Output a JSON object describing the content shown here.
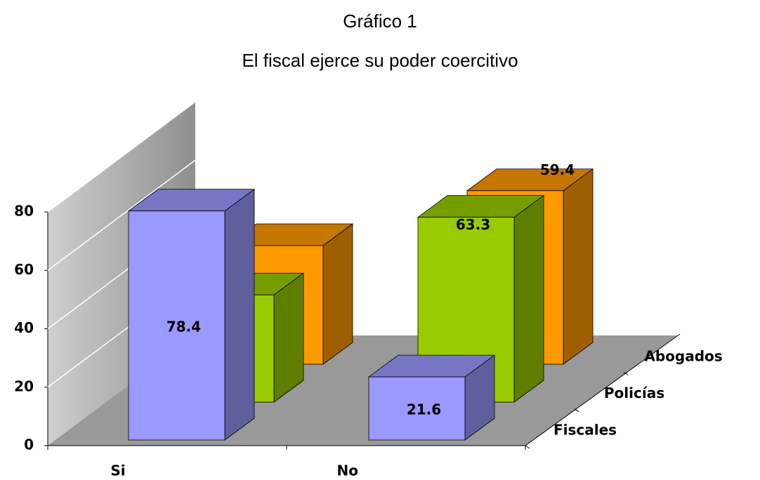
{
  "chart_data": {
    "type": "bar3d",
    "title": "Gráfico 1",
    "subtitle": "El fiscal ejerce su poder coercitivo",
    "categories": [
      "Si",
      "No"
    ],
    "series": [
      {
        "name": "Fiscales",
        "color": "#9999ff",
        "values": [
          78.4,
          21.6
        ]
      },
      {
        "name": "Policías",
        "color": "#99cc00",
        "values": [
          36.7,
          63.3
        ]
      },
      {
        "name": "Abogados",
        "color": "#ff9900",
        "values": [
          40.6,
          59.4
        ]
      }
    ],
    "ylim": [
      0,
      80
    ],
    "yticks": [
      0,
      20,
      40,
      60,
      80
    ],
    "grid": true
  }
}
